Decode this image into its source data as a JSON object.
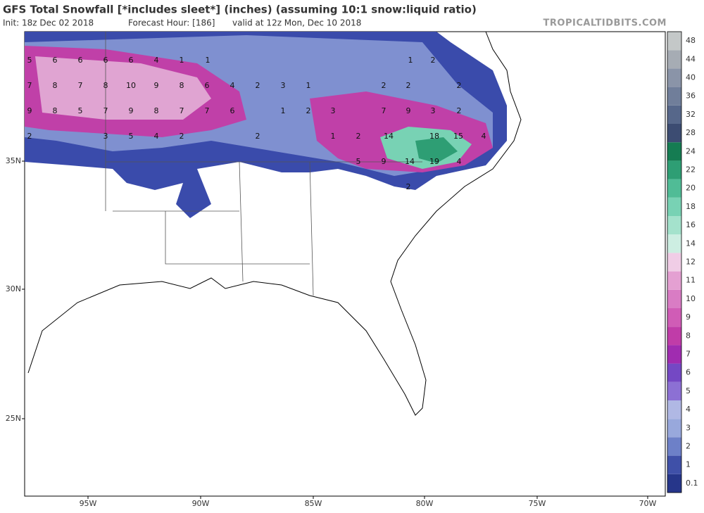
{
  "header": {
    "title": "GFS Total Snowfall [*includes sleet*] (inches) (assuming 10:1 snow:liquid ratio)",
    "init": "Init: 18z Dec 02 2018",
    "forecast_hour": "Forecast Hour: [186]",
    "valid": "valid at 12z Mon, Dec 10 2018",
    "source": "TROPICALTIDBITS.COM"
  },
  "longitude_labels": [
    "95W",
    "90W",
    "85W",
    "80W",
    "75W",
    "70W"
  ],
  "latitude_labels": [
    "35N",
    "30N",
    "25N"
  ],
  "colorbar": {
    "ticks": [
      0.1,
      1,
      2,
      3,
      4,
      5,
      6,
      7,
      8,
      9,
      10,
      11,
      12,
      14,
      16,
      18,
      20,
      22,
      24,
      28,
      32,
      36,
      40,
      44,
      48
    ],
    "colors": [
      "#26368a",
      "#3f50a8",
      "#6d80c8",
      "#98a8dc",
      "#b0b8e4",
      "#8c70d4",
      "#7448c4",
      "#a02cb0",
      "#c03ca8",
      "#d05cb6",
      "#d97cc4",
      "#e4a0d2",
      "#f0cde6",
      "#cdeee2",
      "#a4e2cc",
      "#78d2b4",
      "#50bc96",
      "#2e9e74",
      "#157c52",
      "#3c4c72",
      "#56678a",
      "#707e9a",
      "#8a94a8",
      "#a6acb4",
      "#c4c8c8"
    ]
  },
  "map_labels": [
    5,
    6,
    6,
    6,
    6,
    4,
    1,
    1,
    1,
    2,
    7,
    8,
    7,
    8,
    10,
    9,
    8,
    6,
    4,
    2,
    3,
    1,
    2,
    2,
    2,
    9,
    8,
    5,
    7,
    9,
    8,
    7,
    7,
    6,
    1,
    2,
    3,
    7,
    9,
    3,
    2,
    2,
    3,
    5,
    4,
    2,
    2,
    1,
    2,
    14,
    18,
    15,
    4,
    5,
    9,
    14,
    19,
    4,
    2
  ]
}
